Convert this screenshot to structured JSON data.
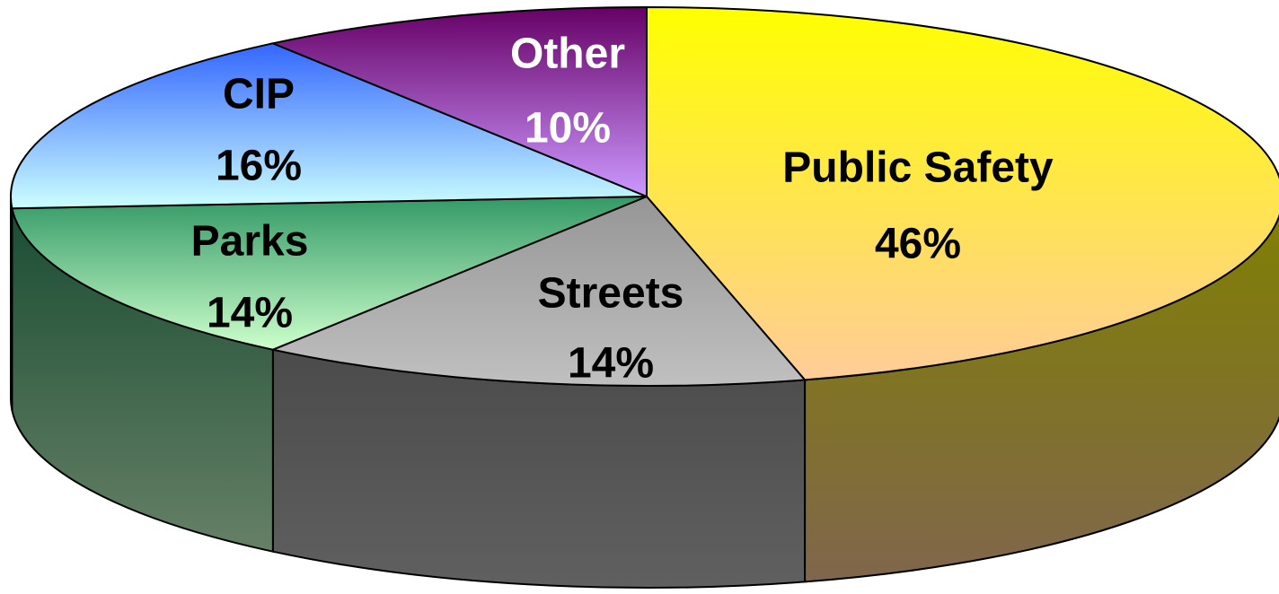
{
  "chart_data": {
    "type": "pie3d",
    "categories": [
      "Public Safety",
      "Streets",
      "Parks",
      "CIP",
      "Other"
    ],
    "values": [
      46,
      14,
      14,
      16,
      10
    ],
    "value_labels": [
      "46%",
      "14%",
      "14%",
      "16%",
      "10%"
    ],
    "colors": [
      "#ffff00",
      "#969696",
      "#339966",
      "#3366ff",
      "#660066"
    ],
    "colors_light": [
      "#ffcc99",
      "#c0c0c0",
      "#ccffcc",
      "#ccffff",
      "#cc99ff"
    ],
    "label_colors": [
      "#000000",
      "#000000",
      "#000000",
      "#000000",
      "#ffffff"
    ]
  }
}
